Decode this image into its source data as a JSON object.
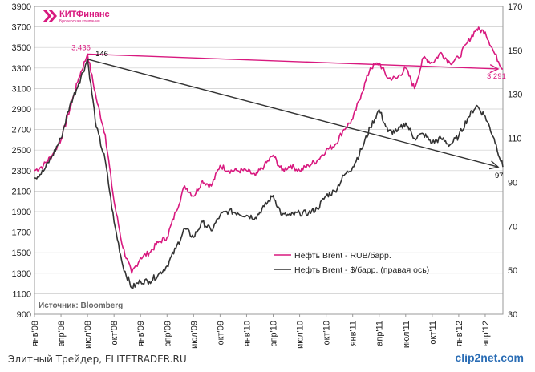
{
  "logo": {
    "text": "КИТФинанс",
    "subtext": "Брокерская компания",
    "color": "#d8197f"
  },
  "source": "Источник: Bloomberg",
  "footer": {
    "left": "Элитный Трейдер, ELITETRADER.RU",
    "right": "clip2net.com"
  },
  "colors": {
    "rub": "#d8197f",
    "usd": "#333333",
    "arrow_rub": "#d8197f",
    "arrow_usd": "#333333",
    "grid": "#cccccc"
  },
  "chart_data": {
    "type": "line",
    "title": "",
    "x_labels": [
      "янв'08",
      "апр'08",
      "июл'08",
      "окт'08",
      "янв'09",
      "апр'09",
      "июл'09",
      "окт'09",
      "янв'10",
      "апр'10",
      "июл'10",
      "окт'10",
      "янв'11",
      "апр'11",
      "июл'11",
      "окт'11",
      "янв'12",
      "апр'12"
    ],
    "left_axis": {
      "min": 900,
      "max": 3900,
      "ticks": [
        900,
        1100,
        1300,
        1500,
        1700,
        1900,
        2100,
        2300,
        2500,
        2700,
        2900,
        3100,
        3300,
        3500,
        3700,
        3900
      ]
    },
    "right_axis": {
      "min": 30,
      "max": 170,
      "ticks": [
        30,
        50,
        70,
        90,
        110,
        130,
        150,
        170
      ]
    },
    "grid": "horizontal",
    "legend_position": "bottom-center",
    "series": [
      {
        "name": "Нефть Brent - RUB/барр.",
        "axis": "left",
        "color": "#d8197f",
        "points": [
          [
            "2008-01",
            2300
          ],
          [
            "2008-02",
            2350
          ],
          [
            "2008-03",
            2450
          ],
          [
            "2008-04",
            2600
          ],
          [
            "2008-05",
            2900
          ],
          [
            "2008-06",
            3200
          ],
          [
            "2008-07",
            3436
          ],
          [
            "2008-08",
            3000
          ],
          [
            "2008-09",
            2650
          ],
          [
            "2008-10",
            2000
          ],
          [
            "2008-11",
            1550
          ],
          [
            "2008-12",
            1300
          ],
          [
            "2009-01",
            1450
          ],
          [
            "2009-02",
            1500
          ],
          [
            "2009-03",
            1600
          ],
          [
            "2009-04",
            1650
          ],
          [
            "2009-05",
            1900
          ],
          [
            "2009-06",
            2150
          ],
          [
            "2009-07",
            2050
          ],
          [
            "2009-08",
            2200
          ],
          [
            "2009-09",
            2150
          ],
          [
            "2009-10",
            2350
          ],
          [
            "2009-11",
            2300
          ],
          [
            "2009-12",
            2300
          ],
          [
            "2010-01",
            2300
          ],
          [
            "2010-02",
            2250
          ],
          [
            "2010-03",
            2350
          ],
          [
            "2010-04",
            2450
          ],
          [
            "2010-05",
            2300
          ],
          [
            "2010-06",
            2350
          ],
          [
            "2010-07",
            2300
          ],
          [
            "2010-08",
            2350
          ],
          [
            "2010-09",
            2400
          ],
          [
            "2010-10",
            2500
          ],
          [
            "2010-11",
            2550
          ],
          [
            "2010-12",
            2700
          ],
          [
            "2011-01",
            2800
          ],
          [
            "2011-02",
            3050
          ],
          [
            "2011-03",
            3300
          ],
          [
            "2011-04",
            3350
          ],
          [
            "2011-05",
            3200
          ],
          [
            "2011-06",
            3200
          ],
          [
            "2011-07",
            3300
          ],
          [
            "2011-08",
            3100
          ],
          [
            "2011-09",
            3400
          ],
          [
            "2011-10",
            3350
          ],
          [
            "2011-11",
            3450
          ],
          [
            "2011-12",
            3350
          ],
          [
            "2012-01",
            3400
          ],
          [
            "2012-02",
            3550
          ],
          [
            "2012-03",
            3680
          ],
          [
            "2012-04",
            3650
          ],
          [
            "2012-05",
            3450
          ],
          [
            "2012-06",
            3291
          ]
        ]
      },
      {
        "name": "Нефть Brent - $/барр. (правая ось)",
        "axis": "right",
        "color": "#333333",
        "points": [
          [
            "2008-01",
            92
          ],
          [
            "2008-02",
            95
          ],
          [
            "2008-03",
            102
          ],
          [
            "2008-04",
            110
          ],
          [
            "2008-05",
            125
          ],
          [
            "2008-06",
            135
          ],
          [
            "2008-07",
            146
          ],
          [
            "2008-08",
            115
          ],
          [
            "2008-09",
            100
          ],
          [
            "2008-10",
            72
          ],
          [
            "2008-11",
            52
          ],
          [
            "2008-12",
            42
          ],
          [
            "2009-01",
            45
          ],
          [
            "2009-02",
            45
          ],
          [
            "2009-03",
            48
          ],
          [
            "2009-04",
            52
          ],
          [
            "2009-05",
            60
          ],
          [
            "2009-06",
            69
          ],
          [
            "2009-07",
            65
          ],
          [
            "2009-08",
            72
          ],
          [
            "2009-09",
            68
          ],
          [
            "2009-10",
            75
          ],
          [
            "2009-11",
            77
          ],
          [
            "2009-12",
            76
          ],
          [
            "2010-01",
            75
          ],
          [
            "2010-02",
            74
          ],
          [
            "2010-03",
            79
          ],
          [
            "2010-04",
            84
          ],
          [
            "2010-05",
            75
          ],
          [
            "2010-06",
            75
          ],
          [
            "2010-07",
            76
          ],
          [
            "2010-08",
            76
          ],
          [
            "2010-09",
            78
          ],
          [
            "2010-10",
            84
          ],
          [
            "2010-11",
            86
          ],
          [
            "2010-12",
            93
          ],
          [
            "2011-01",
            97
          ],
          [
            "2011-02",
            105
          ],
          [
            "2011-03",
            115
          ],
          [
            "2011-04",
            123
          ],
          [
            "2011-05",
            113
          ],
          [
            "2011-06",
            113
          ],
          [
            "2011-07",
            117
          ],
          [
            "2011-08",
            110
          ],
          [
            "2011-09",
            112
          ],
          [
            "2011-10",
            108
          ],
          [
            "2011-11",
            110
          ],
          [
            "2011-12",
            107
          ],
          [
            "2012-01",
            111
          ],
          [
            "2012-02",
            119
          ],
          [
            "2012-03",
            125
          ],
          [
            "2012-04",
            120
          ],
          [
            "2012-05",
            110
          ],
          [
            "2012-06",
            97
          ]
        ]
      }
    ],
    "annotations": [
      {
        "text": "3,436",
        "x": "2008-07",
        "value": 3436,
        "axis": "left",
        "color": "#d8197f"
      },
      {
        "text": "146",
        "x": "2008-07",
        "value": 146,
        "axis": "right",
        "color": "#000000"
      },
      {
        "text": "3,291",
        "x": "2012-06",
        "value": 3291,
        "axis": "left",
        "color": "#d8197f"
      },
      {
        "text": "97",
        "x": "2012-06",
        "value": 97,
        "axis": "right",
        "color": "#000000"
      }
    ],
    "arrows": [
      {
        "from": {
          "x": "2008-07",
          "value": 3436,
          "axis": "left"
        },
        "to": {
          "x": "2012-06",
          "value": 3291,
          "axis": "left"
        },
        "color": "#d8197f"
      },
      {
        "from": {
          "x": "2008-07",
          "value": 146,
          "axis": "right"
        },
        "to": {
          "x": "2012-06",
          "value": 97,
          "axis": "right"
        },
        "color": "#333333"
      }
    ]
  }
}
